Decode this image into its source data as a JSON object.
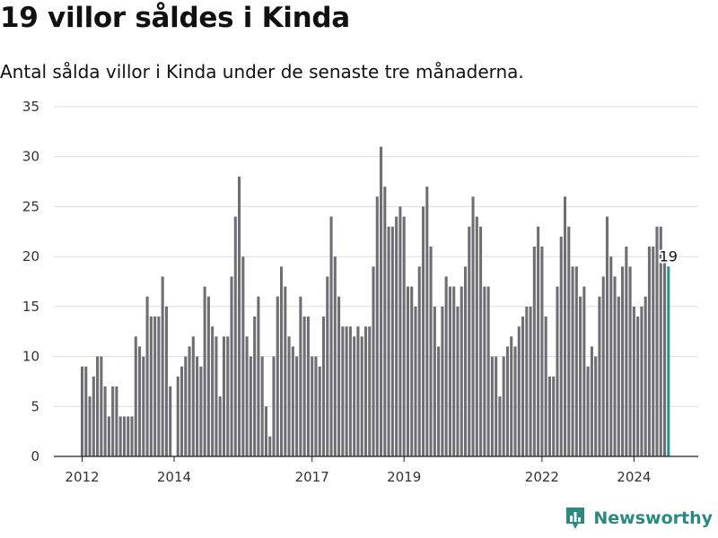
{
  "chart_data": {
    "type": "bar",
    "title": "19 villor såldes i Kinda",
    "subtitle": "Antal sålda villor i Kinda under de senaste tre månaderna.",
    "xlabel": "",
    "ylabel": "",
    "ylim": [
      0,
      35
    ],
    "yticks": [
      0,
      5,
      10,
      15,
      20,
      25,
      30,
      35
    ],
    "xticks": [
      2012,
      2014,
      2017,
      2019,
      2022,
      2024
    ],
    "grid": true,
    "bar_color": "#6e6e73",
    "highlight_color": "#26958b",
    "highlight_label": "19",
    "start": "2012-01",
    "values": [
      9,
      9,
      6,
      8,
      10,
      10,
      7,
      4,
      7,
      7,
      4,
      4,
      4,
      4,
      12,
      11,
      10,
      16,
      14,
      14,
      14,
      18,
      15,
      7,
      0,
      8,
      9,
      10,
      11,
      12,
      10,
      9,
      17,
      16,
      13,
      12,
      6,
      12,
      12,
      18,
      24,
      28,
      20,
      12,
      10,
      14,
      16,
      10,
      5,
      2,
      10,
      16,
      19,
      17,
      12,
      11,
      10,
      16,
      14,
      14,
      10,
      10,
      9,
      14,
      18,
      24,
      20,
      16,
      13,
      13,
      13,
      12,
      13,
      12,
      13,
      13,
      19,
      26,
      31,
      27,
      23,
      23,
      24,
      25,
      24,
      17,
      17,
      15,
      19,
      25,
      27,
      21,
      15,
      11,
      15,
      18,
      17,
      17,
      15,
      17,
      19,
      23,
      26,
      24,
      23,
      17,
      17,
      10,
      10,
      6,
      10,
      11,
      12,
      11,
      13,
      14,
      15,
      15,
      21,
      23,
      21,
      14,
      8,
      8,
      17,
      22,
      26,
      23,
      19,
      19,
      16,
      17,
      9,
      11,
      10,
      16,
      18,
      24,
      20,
      18,
      16,
      19,
      21,
      19,
      15,
      14,
      15,
      16,
      21,
      21,
      23,
      23,
      20,
      19
    ]
  },
  "brand": {
    "name": "Newsworthy",
    "color": "#2a8a82",
    "icon": "bar-chart-pin-icon"
  }
}
